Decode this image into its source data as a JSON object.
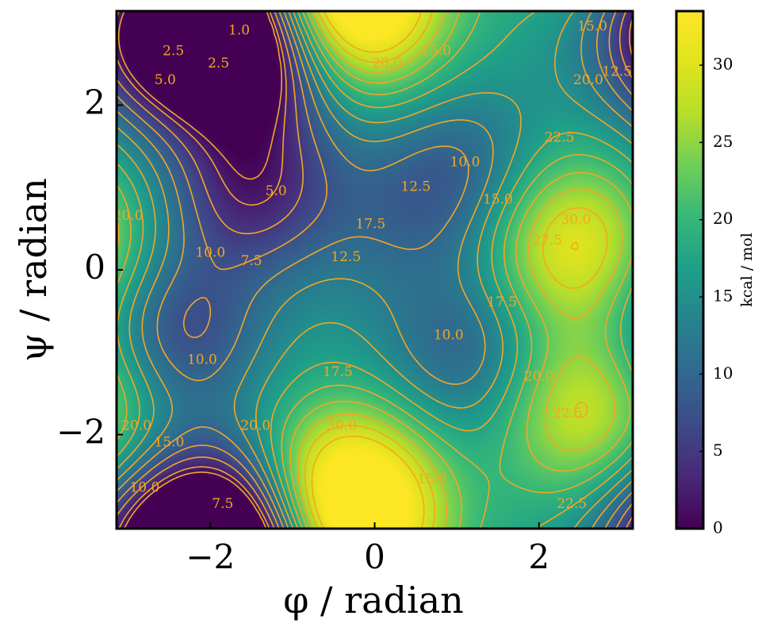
{
  "chart_data": {
    "type": "heatmap",
    "title": "",
    "xlabel": "φ / radian",
    "ylabel": "ψ / radian",
    "xlim": [
      -3.14159,
      3.14159
    ],
    "ylim": [
      -3.14159,
      3.14159
    ],
    "xticks": [
      -2,
      0,
      2
    ],
    "yticks": [
      -2,
      0,
      2
    ],
    "xtick_labels": [
      "−2",
      "0",
      "2"
    ],
    "ytick_labels": [
      "−2",
      "0",
      "2"
    ],
    "colormap": "viridis",
    "colorbar": {
      "label": "kcal / mol",
      "range": [
        0,
        33.5
      ],
      "ticks": [
        0,
        5,
        10,
        15,
        20,
        25,
        30
      ],
      "tick_labels": [
        "0",
        "5",
        "10",
        "15",
        "20",
        "25",
        "30"
      ]
    },
    "contour_color": "#f5a623",
    "contour_levels": [
      1.0,
      2.5,
      5.0,
      7.5,
      10.0,
      12.5,
      15.0,
      17.5,
      20.0,
      22.5,
      25.0,
      27.5,
      30.0
    ],
    "features": [
      {
        "kind": "minimum",
        "phi": -1.5,
        "psi": 2.65,
        "energy": 0.5
      },
      {
        "kind": "minimum",
        "phi": -2.6,
        "psi": 2.85,
        "energy": 2.0
      },
      {
        "kind": "minimum",
        "phi": -1.5,
        "psi": 1.0,
        "energy": 3.8
      },
      {
        "kind": "minimum",
        "phi": -2.4,
        "psi": -0.75,
        "energy": 6.5
      },
      {
        "kind": "minimum",
        "phi": -1.9,
        "psi": -3.1,
        "energy": 4.0
      },
      {
        "kind": "minimum",
        "phi": 1.0,
        "psi": 1.15,
        "energy": 9.0
      },
      {
        "kind": "minimum",
        "phi": 1.15,
        "psi": -1.0,
        "energy": 9.0
      },
      {
        "kind": "minimum",
        "phi": 0.1,
        "psi": 0.5,
        "energy": 13.5
      },
      {
        "kind": "maximum",
        "phi": 2.4,
        "psi": 0.3,
        "energy": 31.5
      },
      {
        "kind": "maximum",
        "phi": 2.55,
        "psi": -1.7,
        "energy": 29.5
      },
      {
        "kind": "maximum",
        "phi": -0.35,
        "psi": -2.7,
        "energy": 33.5
      },
      {
        "kind": "maximum",
        "phi": -0.2,
        "psi": 3.1,
        "energy": 29.0
      }
    ],
    "contour_labels": [
      {
        "text": "1.0",
        "phi": -1.65,
        "psi": 2.9
      },
      {
        "text": "2.5",
        "phi": -2.45,
        "psi": 2.65
      },
      {
        "text": "2.5",
        "phi": -1.9,
        "psi": 2.5
      },
      {
        "text": "5.0",
        "phi": -2.55,
        "psi": 2.3
      },
      {
        "text": "5.0",
        "phi": -1.2,
        "psi": 0.95
      },
      {
        "text": "7.5",
        "phi": -1.5,
        "psi": 0.1
      },
      {
        "text": "10.0",
        "phi": -2.0,
        "psi": 0.2
      },
      {
        "text": "10.0",
        "phi": -2.1,
        "psi": -1.1
      },
      {
        "text": "12.5",
        "phi": -0.35,
        "psi": 0.15
      },
      {
        "text": "17.5",
        "phi": -0.05,
        "psi": 0.55
      },
      {
        "text": "12.5",
        "phi": 0.5,
        "psi": 1.0
      },
      {
        "text": "10.0",
        "phi": 1.1,
        "psi": 1.3
      },
      {
        "text": "15.0",
        "phi": 1.5,
        "psi": 0.85
      },
      {
        "text": "15.0",
        "phi": 0.75,
        "psi": 2.65
      },
      {
        "text": "20.0",
        "phi": 0.15,
        "psi": 2.5
      },
      {
        "text": "10.0",
        "phi": 0.9,
        "psi": -0.8
      },
      {
        "text": "17.5",
        "phi": 1.55,
        "psi": -0.4
      },
      {
        "text": "17.5",
        "phi": -0.45,
        "psi": -1.25
      },
      {
        "text": "20.0",
        "phi": 2.0,
        "psi": -1.3
      },
      {
        "text": "22.5",
        "phi": 2.25,
        "psi": 1.6
      },
      {
        "text": "27.5",
        "phi": 2.1,
        "psi": 0.35
      },
      {
        "text": "30.0",
        "phi": 2.45,
        "psi": 0.6
      },
      {
        "text": "22.5",
        "phi": 2.35,
        "psi": -1.75
      },
      {
        "text": "22.5",
        "phi": 2.4,
        "psi": -2.85
      },
      {
        "text": "30.0",
        "phi": -0.4,
        "psi": -1.9
      },
      {
        "text": "20.0",
        "phi": -1.45,
        "psi": -1.9
      },
      {
        "text": "15.0",
        "phi": -2.5,
        "psi": -2.1
      },
      {
        "text": "10.0",
        "phi": -2.8,
        "psi": -2.65
      },
      {
        "text": "7.5",
        "phi": -1.85,
        "psi": -2.85
      },
      {
        "text": "15.0",
        "phi": 0.7,
        "psi": -2.55
      },
      {
        "text": "15.0",
        "phi": 2.65,
        "psi": 2.95
      },
      {
        "text": "20.0",
        "phi": 2.6,
        "psi": 2.3
      },
      {
        "text": "12.5",
        "phi": 2.95,
        "psi": 2.4
      },
      {
        "text": "20.0",
        "phi": -3.0,
        "psi": 0.65
      },
      {
        "text": "20.0",
        "phi": -2.9,
        "psi": -1.9
      }
    ]
  }
}
